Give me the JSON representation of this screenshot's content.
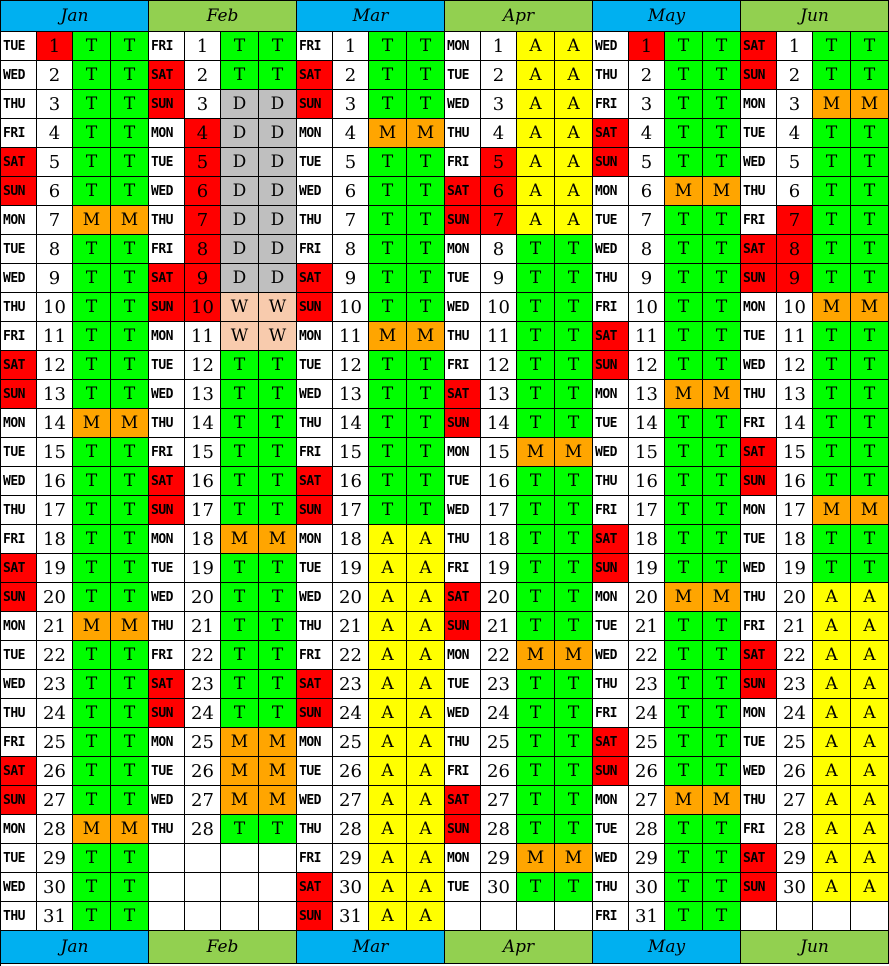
{
  "colors": {
    "blue_header": "#00B0F0",
    "green_header": "#92D050",
    "weekend_red": "#FF0000",
    "T": "#00FF00",
    "M": "#FFA500",
    "A": "#FFFF00",
    "D": "#BFBFBF",
    "W": "#F8CBAD",
    "blank": "#FFFFFF"
  },
  "months": [
    {
      "name": "Jan",
      "header_color": "blue_header",
      "days": [
        {
          "dow": "TUE",
          "day": "1",
          "code": "T",
          "num_red": true
        },
        {
          "dow": "WED",
          "day": "2",
          "code": "T"
        },
        {
          "dow": "THU",
          "day": "3",
          "code": "T"
        },
        {
          "dow": "FRI",
          "day": "4",
          "code": "T"
        },
        {
          "dow": "SAT",
          "day": "5",
          "code": "T"
        },
        {
          "dow": "SUN",
          "day": "6",
          "code": "T"
        },
        {
          "dow": "MON",
          "day": "7",
          "code": "M"
        },
        {
          "dow": "TUE",
          "day": "8",
          "code": "T"
        },
        {
          "dow": "WED",
          "day": "9",
          "code": "T"
        },
        {
          "dow": "THU",
          "day": "10",
          "code": "T"
        },
        {
          "dow": "FRI",
          "day": "11",
          "code": "T"
        },
        {
          "dow": "SAT",
          "day": "12",
          "code": "T"
        },
        {
          "dow": "SUN",
          "day": "13",
          "code": "T"
        },
        {
          "dow": "MON",
          "day": "14",
          "code": "M"
        },
        {
          "dow": "TUE",
          "day": "15",
          "code": "T"
        },
        {
          "dow": "WED",
          "day": "16",
          "code": "T"
        },
        {
          "dow": "THU",
          "day": "17",
          "code": "T"
        },
        {
          "dow": "FRI",
          "day": "18",
          "code": "T"
        },
        {
          "dow": "SAT",
          "day": "19",
          "code": "T"
        },
        {
          "dow": "SUN",
          "day": "20",
          "code": "T"
        },
        {
          "dow": "MON",
          "day": "21",
          "code": "M"
        },
        {
          "dow": "TUE",
          "day": "22",
          "code": "T"
        },
        {
          "dow": "WED",
          "day": "23",
          "code": "T"
        },
        {
          "dow": "THU",
          "day": "24",
          "code": "T"
        },
        {
          "dow": "FRI",
          "day": "25",
          "code": "T"
        },
        {
          "dow": "SAT",
          "day": "26",
          "code": "T"
        },
        {
          "dow": "SUN",
          "day": "27",
          "code": "T"
        },
        {
          "dow": "MON",
          "day": "28",
          "code": "M"
        },
        {
          "dow": "TUE",
          "day": "29",
          "code": "T"
        },
        {
          "dow": "WED",
          "day": "30",
          "code": "T"
        },
        {
          "dow": "THU",
          "day": "31",
          "code": "T"
        }
      ]
    },
    {
      "name": "Feb",
      "header_color": "green_header",
      "days": [
        {
          "dow": "FRI",
          "day": "1",
          "code": "T"
        },
        {
          "dow": "SAT",
          "day": "2",
          "code": "T"
        },
        {
          "dow": "SUN",
          "day": "3",
          "code": "D"
        },
        {
          "dow": "MON",
          "day": "4",
          "code": "D",
          "num_red": true
        },
        {
          "dow": "TUE",
          "day": "5",
          "code": "D",
          "num_red": true
        },
        {
          "dow": "WED",
          "day": "6",
          "code": "D",
          "num_red": true
        },
        {
          "dow": "THU",
          "day": "7",
          "code": "D",
          "num_red": true
        },
        {
          "dow": "FRI",
          "day": "8",
          "code": "D",
          "num_red": true
        },
        {
          "dow": "SAT",
          "day": "9",
          "code": "D",
          "num_red": true
        },
        {
          "dow": "SUN",
          "day": "10",
          "code": "W",
          "num_red": true
        },
        {
          "dow": "MON",
          "day": "11",
          "code": "W"
        },
        {
          "dow": "TUE",
          "day": "12",
          "code": "T"
        },
        {
          "dow": "WED",
          "day": "13",
          "code": "T"
        },
        {
          "dow": "THU",
          "day": "14",
          "code": "T"
        },
        {
          "dow": "FRI",
          "day": "15",
          "code": "T"
        },
        {
          "dow": "SAT",
          "day": "16",
          "code": "T"
        },
        {
          "dow": "SUN",
          "day": "17",
          "code": "T"
        },
        {
          "dow": "MON",
          "day": "18",
          "code": "M"
        },
        {
          "dow": "TUE",
          "day": "19",
          "code": "T"
        },
        {
          "dow": "WED",
          "day": "20",
          "code": "T"
        },
        {
          "dow": "THU",
          "day": "21",
          "code": "T"
        },
        {
          "dow": "FRI",
          "day": "22",
          "code": "T"
        },
        {
          "dow": "SAT",
          "day": "23",
          "code": "T"
        },
        {
          "dow": "SUN",
          "day": "24",
          "code": "T"
        },
        {
          "dow": "MON",
          "day": "25",
          "code": "M"
        },
        {
          "dow": "TUE",
          "day": "26",
          "code": "M"
        },
        {
          "dow": "WED",
          "day": "27",
          "code": "M"
        },
        {
          "dow": "THU",
          "day": "28",
          "code": "T"
        },
        {
          "blank": true
        },
        {
          "blank": true
        },
        {
          "blank": true
        }
      ]
    },
    {
      "name": "Mar",
      "header_color": "blue_header",
      "days": [
        {
          "dow": "FRI",
          "day": "1",
          "code": "T"
        },
        {
          "dow": "SAT",
          "day": "2",
          "code": "T"
        },
        {
          "dow": "SUN",
          "day": "3",
          "code": "T"
        },
        {
          "dow": "MON",
          "day": "4",
          "code": "M"
        },
        {
          "dow": "TUE",
          "day": "5",
          "code": "T"
        },
        {
          "dow": "WED",
          "day": "6",
          "code": "T"
        },
        {
          "dow": "THU",
          "day": "7",
          "code": "T"
        },
        {
          "dow": "FRI",
          "day": "8",
          "code": "T"
        },
        {
          "dow": "SAT",
          "day": "9",
          "code": "T"
        },
        {
          "dow": "SUN",
          "day": "10",
          "code": "T"
        },
        {
          "dow": "MON",
          "day": "11",
          "code": "M"
        },
        {
          "dow": "TUE",
          "day": "12",
          "code": "T"
        },
        {
          "dow": "WED",
          "day": "13",
          "code": "T"
        },
        {
          "dow": "THU",
          "day": "14",
          "code": "T"
        },
        {
          "dow": "FRI",
          "day": "15",
          "code": "T"
        },
        {
          "dow": "SAT",
          "day": "16",
          "code": "T"
        },
        {
          "dow": "SUN",
          "day": "17",
          "code": "T"
        },
        {
          "dow": "MON",
          "day": "18",
          "code": "A"
        },
        {
          "dow": "TUE",
          "day": "19",
          "code": "A"
        },
        {
          "dow": "WED",
          "day": "20",
          "code": "A"
        },
        {
          "dow": "THU",
          "day": "21",
          "code": "A"
        },
        {
          "dow": "FRI",
          "day": "22",
          "code": "A"
        },
        {
          "dow": "SAT",
          "day": "23",
          "code": "A"
        },
        {
          "dow": "SUN",
          "day": "24",
          "code": "A"
        },
        {
          "dow": "MON",
          "day": "25",
          "code": "A"
        },
        {
          "dow": "TUE",
          "day": "26",
          "code": "A"
        },
        {
          "dow": "WED",
          "day": "27",
          "code": "A"
        },
        {
          "dow": "THU",
          "day": "28",
          "code": "A"
        },
        {
          "dow": "FRI",
          "day": "29",
          "code": "A"
        },
        {
          "dow": "SAT",
          "day": "30",
          "code": "A"
        },
        {
          "dow": "SUN",
          "day": "31",
          "code": "A"
        }
      ]
    },
    {
      "name": "Apr",
      "header_color": "green_header",
      "days": [
        {
          "dow": "MON",
          "day": "1",
          "code": "A"
        },
        {
          "dow": "TUE",
          "day": "2",
          "code": "A"
        },
        {
          "dow": "WED",
          "day": "3",
          "code": "A"
        },
        {
          "dow": "THU",
          "day": "4",
          "code": "A"
        },
        {
          "dow": "FRI",
          "day": "5",
          "code": "A",
          "num_red": true
        },
        {
          "dow": "SAT",
          "day": "6",
          "code": "A",
          "num_red": true
        },
        {
          "dow": "SUN",
          "day": "7",
          "code": "A",
          "num_red": true
        },
        {
          "dow": "MON",
          "day": "8",
          "code": "T"
        },
        {
          "dow": "TUE",
          "day": "9",
          "code": "T"
        },
        {
          "dow": "WED",
          "day": "10",
          "code": "T"
        },
        {
          "dow": "THU",
          "day": "11",
          "code": "T"
        },
        {
          "dow": "FRI",
          "day": "12",
          "code": "T"
        },
        {
          "dow": "SAT",
          "day": "13",
          "code": "T"
        },
        {
          "dow": "SUN",
          "day": "14",
          "code": "T"
        },
        {
          "dow": "MON",
          "day": "15",
          "code": "M"
        },
        {
          "dow": "TUE",
          "day": "16",
          "code": "T"
        },
        {
          "dow": "WED",
          "day": "17",
          "code": "T"
        },
        {
          "dow": "THU",
          "day": "18",
          "code": "T"
        },
        {
          "dow": "FRI",
          "day": "19",
          "code": "T"
        },
        {
          "dow": "SAT",
          "day": "20",
          "code": "T"
        },
        {
          "dow": "SUN",
          "day": "21",
          "code": "T"
        },
        {
          "dow": "MON",
          "day": "22",
          "code": "M"
        },
        {
          "dow": "TUE",
          "day": "23",
          "code": "T"
        },
        {
          "dow": "WED",
          "day": "24",
          "code": "T"
        },
        {
          "dow": "THU",
          "day": "25",
          "code": "T"
        },
        {
          "dow": "FRI",
          "day": "26",
          "code": "T"
        },
        {
          "dow": "SAT",
          "day": "27",
          "code": "T"
        },
        {
          "dow": "SUN",
          "day": "28",
          "code": "T"
        },
        {
          "dow": "MON",
          "day": "29",
          "code": "M"
        },
        {
          "dow": "TUE",
          "day": "30",
          "code": "T"
        },
        {
          "blank": true
        }
      ]
    },
    {
      "name": "May",
      "header_color": "blue_header",
      "days": [
        {
          "dow": "WED",
          "day": "1",
          "code": "T",
          "num_red": true
        },
        {
          "dow": "THU",
          "day": "2",
          "code": "T"
        },
        {
          "dow": "FRI",
          "day": "3",
          "code": "T"
        },
        {
          "dow": "SAT",
          "day": "4",
          "code": "T"
        },
        {
          "dow": "SUN",
          "day": "5",
          "code": "T"
        },
        {
          "dow": "MON",
          "day": "6",
          "code": "M"
        },
        {
          "dow": "TUE",
          "day": "7",
          "code": "T"
        },
        {
          "dow": "WED",
          "day": "8",
          "code": "T"
        },
        {
          "dow": "THU",
          "day": "9",
          "code": "T"
        },
        {
          "dow": "FRI",
          "day": "10",
          "code": "T"
        },
        {
          "dow": "SAT",
          "day": "11",
          "code": "T"
        },
        {
          "dow": "SUN",
          "day": "12",
          "code": "T"
        },
        {
          "dow": "MON",
          "day": "13",
          "code": "M"
        },
        {
          "dow": "TUE",
          "day": "14",
          "code": "T"
        },
        {
          "dow": "WED",
          "day": "15",
          "code": "T"
        },
        {
          "dow": "THU",
          "day": "16",
          "code": "T"
        },
        {
          "dow": "FRI",
          "day": "17",
          "code": "T"
        },
        {
          "dow": "SAT",
          "day": "18",
          "code": "T"
        },
        {
          "dow": "SUN",
          "day": "19",
          "code": "T"
        },
        {
          "dow": "MON",
          "day": "20",
          "code": "M"
        },
        {
          "dow": "TUE",
          "day": "21",
          "code": "T"
        },
        {
          "dow": "WED",
          "day": "22",
          "code": "T"
        },
        {
          "dow": "THU",
          "day": "23",
          "code": "T"
        },
        {
          "dow": "FRI",
          "day": "24",
          "code": "T"
        },
        {
          "dow": "SAT",
          "day": "25",
          "code": "T"
        },
        {
          "dow": "SUN",
          "day": "26",
          "code": "T"
        },
        {
          "dow": "MON",
          "day": "27",
          "code": "M"
        },
        {
          "dow": "TUE",
          "day": "28",
          "code": "T"
        },
        {
          "dow": "WED",
          "day": "29",
          "code": "T"
        },
        {
          "dow": "THU",
          "day": "30",
          "code": "T"
        },
        {
          "dow": "FRI",
          "day": "31",
          "code": "T"
        }
      ]
    },
    {
      "name": "Jun",
      "header_color": "green_header",
      "days": [
        {
          "dow": "SAT",
          "day": "1",
          "code": "T"
        },
        {
          "dow": "SUN",
          "day": "2",
          "code": "T"
        },
        {
          "dow": "MON",
          "day": "3",
          "code": "M"
        },
        {
          "dow": "TUE",
          "day": "4",
          "code": "T"
        },
        {
          "dow": "WED",
          "day": "5",
          "code": "T"
        },
        {
          "dow": "THU",
          "day": "6",
          "code": "T"
        },
        {
          "dow": "FRI",
          "day": "7",
          "code": "T",
          "num_red": true
        },
        {
          "dow": "SAT",
          "day": "8",
          "code": "T",
          "num_red": true
        },
        {
          "dow": "SUN",
          "day": "9",
          "code": "T",
          "num_red": true
        },
        {
          "dow": "MON",
          "day": "10",
          "code": "M"
        },
        {
          "dow": "TUE",
          "day": "11",
          "code": "T"
        },
        {
          "dow": "WED",
          "day": "12",
          "code": "T"
        },
        {
          "dow": "THU",
          "day": "13",
          "code": "T"
        },
        {
          "dow": "FRI",
          "day": "14",
          "code": "T"
        },
        {
          "dow": "SAT",
          "day": "15",
          "code": "T"
        },
        {
          "dow": "SUN",
          "day": "16",
          "code": "T"
        },
        {
          "dow": "MON",
          "day": "17",
          "code": "M"
        },
        {
          "dow": "TUE",
          "day": "18",
          "code": "T"
        },
        {
          "dow": "WED",
          "day": "19",
          "code": "T"
        },
        {
          "dow": "THU",
          "day": "20",
          "code": "A"
        },
        {
          "dow": "FRI",
          "day": "21",
          "code": "A"
        },
        {
          "dow": "SAT",
          "day": "22",
          "code": "A"
        },
        {
          "dow": "SUN",
          "day": "23",
          "code": "A"
        },
        {
          "dow": "MON",
          "day": "24",
          "code": "A"
        },
        {
          "dow": "TUE",
          "day": "25",
          "code": "A"
        },
        {
          "dow": "WED",
          "day": "26",
          "code": "A"
        },
        {
          "dow": "THU",
          "day": "27",
          "code": "A"
        },
        {
          "dow": "FRI",
          "day": "28",
          "code": "A"
        },
        {
          "dow": "SAT",
          "day": "29",
          "code": "A"
        },
        {
          "dow": "SUN",
          "day": "30",
          "code": "A"
        },
        {
          "blank": true
        }
      ]
    }
  ]
}
